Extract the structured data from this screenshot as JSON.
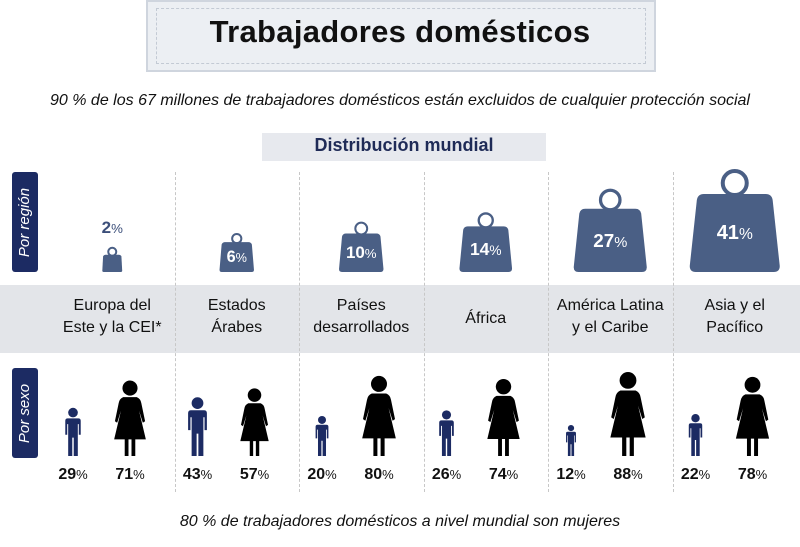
{
  "title": "Trabajadores domésticos",
  "subtitle": "90 % de los 67 millones de trabajadores domésticos están excluidos de cualquier protección social",
  "section_title": "Distribución mundial",
  "side_labels": {
    "region": "Por región",
    "sex": "Por sexo"
  },
  "footer": "80 % de trabajadores domésticos a nivel mundial son mujeres",
  "colors": {
    "weight": "#4a5f85",
    "side_label": "#1c2b63",
    "men": "#1c2b63",
    "women": "#000000"
  },
  "chart_data": {
    "type": "table",
    "regions": [
      {
        "name": [
          "Europa del",
          "Este y la CEI*"
        ],
        "share": 2,
        "men": 29,
        "women": 71
      },
      {
        "name": [
          "Estados",
          "Árabes"
        ],
        "share": 6,
        "men": 43,
        "women": 57
      },
      {
        "name": [
          "Países",
          "desarrollados"
        ],
        "share": 10,
        "men": 20,
        "women": 80
      },
      {
        "name": [
          "África"
        ],
        "share": 14,
        "men": 26,
        "women": 74
      },
      {
        "name": [
          "América Latina",
          "y el Caribe"
        ],
        "share": 27,
        "men": 12,
        "women": 88
      },
      {
        "name": [
          "Asia y el",
          "Pacífico"
        ],
        "share": 41,
        "men": 22,
        "women": 78
      }
    ],
    "unit": "%"
  }
}
